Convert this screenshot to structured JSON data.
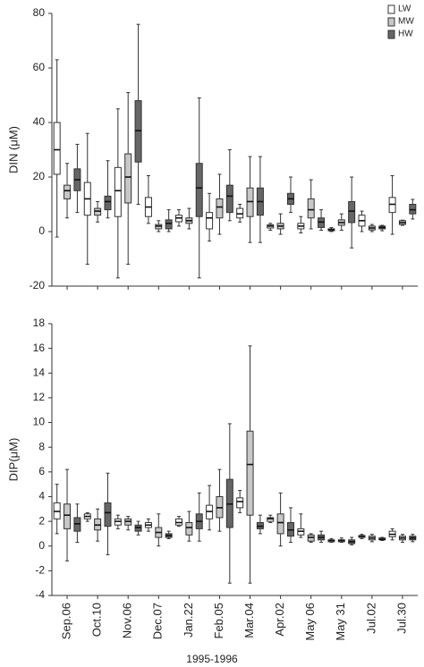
{
  "chart_data": {
    "type": "box",
    "categories": [
      "Sep.06",
      "Oct.10",
      "Nov.06",
      "Dec.07",
      "Jan.22",
      "Feb.05",
      "Mar.04",
      "Apr.02",
      "May 06",
      "May 31",
      "Jul.02",
      "Jul.30"
    ],
    "xlabel": "1995-1996",
    "series": [
      {
        "name": "LW",
        "color": "#ffffff"
      },
      {
        "name": "MW",
        "color": "#c8c8c8"
      },
      {
        "name": "HW",
        "color": "#666666"
      }
    ],
    "panels": [
      {
        "ylabel": "DIN (μM)",
        "ylim": [
          -20,
          80
        ],
        "yticks": [
          -20,
          0,
          20,
          40,
          60,
          80
        ],
        "boxes": [
          [
            [
              -2,
              21,
              30,
              40,
              63
            ],
            [
              -12,
              6,
              12,
              18,
              36
            ],
            [
              -17,
              5.5,
              15,
              23.5,
              45
            ],
            [
              3,
              5.5,
              9,
              12.5,
              20.5
            ],
            [
              2,
              3.6,
              5,
              6,
              8
            ],
            [
              -3.5,
              1,
              5,
              7,
              14
            ],
            [
              3.5,
              5,
              6.5,
              8.5,
              10
            ],
            [
              0.5,
              1.3,
              2,
              2.5,
              3
            ],
            [
              -0.5,
              1,
              2,
              3,
              5.5
            ],
            [
              0,
              0.3,
              0.7,
              1,
              1.5
            ],
            [
              0,
              2,
              4,
              6,
              7.5
            ],
            [
              -1,
              7,
              10,
              12.5,
              20.5
            ]
          ],
          [
            [
              5,
              12,
              15,
              17,
              25
            ],
            [
              3.5,
              6,
              7.5,
              8.5,
              11
            ],
            [
              -12,
              10.5,
              20,
              28.5,
              51
            ],
            [
              0,
              1,
              2,
              2.6,
              4
            ],
            [
              1,
              3,
              4,
              5,
              8.5
            ],
            [
              -1,
              5,
              9,
              12,
              21
            ],
            [
              -4,
              5.5,
              11,
              16,
              27.5
            ],
            [
              -1,
              1,
              2,
              3,
              6.5
            ],
            [
              1,
              5,
              8,
              12,
              19
            ],
            [
              0.5,
              2.3,
              3.3,
              4.3,
              6.5
            ],
            [
              0,
              0.6,
              1.3,
              2,
              2.6
            ],
            [
              2.3,
              2.6,
              3.3,
              4,
              4.2
            ]
          ],
          [
            [
              7,
              15,
              19,
              23,
              32
            ],
            [
              5,
              8,
              11,
              13,
              26
            ],
            [
              10,
              25.5,
              37,
              48,
              76
            ],
            [
              0,
              1,
              3,
              4.3,
              8
            ],
            [
              -17,
              5.5,
              16,
              25,
              49
            ],
            [
              4,
              7,
              13,
              17,
              30
            ],
            [
              -4,
              6,
              11,
              16,
              27.5
            ],
            [
              7,
              10,
              12,
              14,
              20
            ],
            [
              0.5,
              1.5,
              3.5,
              5,
              8
            ],
            [
              -6,
              3.3,
              7.5,
              11,
              20
            ],
            [
              0.3,
              1,
              1.5,
              2,
              2.3
            ],
            [
              4.6,
              6.5,
              8,
              10,
              11.8
            ]
          ]
        ]
      },
      {
        "ylabel": "DIP(μM)",
        "ylim": [
          -4,
          18
        ],
        "yticks": [
          -4,
          -2,
          0,
          2,
          4,
          6,
          8,
          10,
          12,
          14,
          16,
          18
        ],
        "boxes": [
          [
            [
              1,
              2.2,
              2.8,
              3.5,
              5
            ],
            [
              2,
              2.2,
              2.4,
              2.6,
              2.7
            ],
            [
              1.4,
              1.7,
              2,
              2.2,
              2.5
            ],
            [
              1.2,
              1.5,
              1.7,
              1.9,
              2.2
            ],
            [
              1.6,
              1.7,
              1.9,
              2.2,
              2.4
            ],
            [
              1.3,
              2.2,
              2.8,
              3.3,
              4.9
            ],
            [
              2.7,
              3.1,
              3.6,
              3.9,
              4.5
            ],
            [
              1.9,
              2,
              2.2,
              2.3,
              2.5
            ],
            [
              0.7,
              0.9,
              1.2,
              1.4,
              2.6
            ],
            [
              0.3,
              0.35,
              0.45,
              0.5,
              0.6
            ],
            [
              0.6,
              0.7,
              0.8,
              0.85,
              0.95
            ],
            [
              0.5,
              0.75,
              0.95,
              1.2,
              1.4
            ]
          ],
          [
            [
              -1.2,
              1.4,
              2.5,
              3.4,
              6.2
            ],
            [
              0.4,
              1.3,
              1.7,
              2.2,
              3
            ],
            [
              1.3,
              1.7,
              2,
              2.2,
              2.4
            ],
            [
              0,
              0.7,
              1.1,
              1.5,
              2.6
            ],
            [
              0.4,
              0.9,
              1.5,
              1.9,
              2.8
            ],
            [
              1.2,
              2.3,
              3.1,
              4,
              6.2
            ],
            [
              -3,
              2.5,
              6.6,
              9.3,
              16.2
            ],
            [
              0,
              1,
              1.9,
              2.6,
              4.3
            ],
            [
              0.3,
              0.4,
              0.7,
              0.9,
              1
            ],
            [
              0.3,
              0.35,
              0.45,
              0.5,
              0.65
            ],
            [
              0.35,
              0.5,
              0.65,
              0.8,
              0.95
            ],
            [
              0.3,
              0.5,
              0.65,
              0.8,
              0.95
            ]
          ],
          [
            [
              0.3,
              1.2,
              1.8,
              2.3,
              3.4
            ],
            [
              -0.7,
              1.6,
              2.7,
              3.5,
              5.9
            ],
            [
              0.9,
              1.2,
              1.5,
              1.7,
              2
            ],
            [
              0.6,
              0.7,
              0.85,
              1,
              1.2
            ],
            [
              0.4,
              1.4,
              2,
              2.6,
              4.3
            ],
            [
              -3,
              1.5,
              3.4,
              5.4,
              9.9
            ],
            [
              1,
              1.4,
              1.6,
              1.9,
              2.5
            ],
            [
              0.3,
              0.8,
              1.3,
              1.9,
              3.1
            ],
            [
              0.3,
              0.5,
              0.7,
              0.9,
              1.2
            ],
            [
              0.1,
              0.2,
              0.35,
              0.5,
              0.7
            ],
            [
              0.45,
              0.5,
              0.55,
              0.65,
              0.7
            ],
            [
              0.35,
              0.5,
              0.65,
              0.8,
              0.95
            ]
          ]
        ]
      }
    ]
  }
}
